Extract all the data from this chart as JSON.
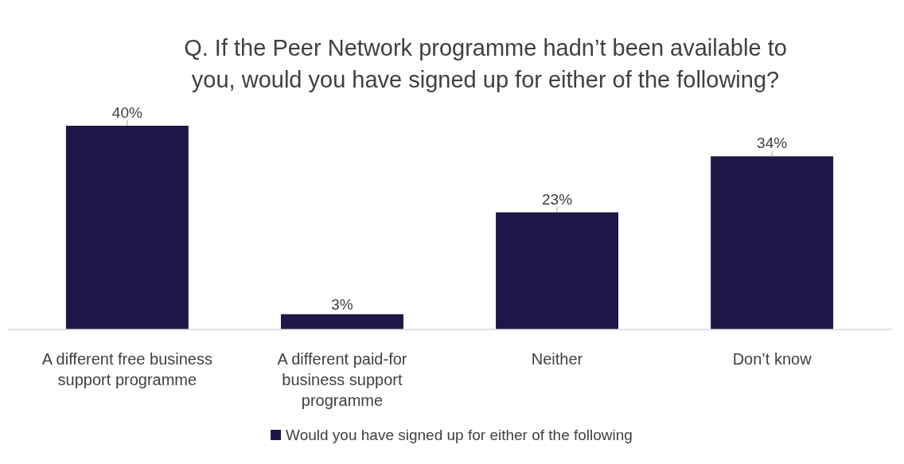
{
  "chart_data": {
    "type": "bar",
    "title": "Q. If the Peer Network programme hadn’t been available to you, would you have signed up for either of the following?",
    "categories": [
      "A different free business support programme",
      "A different paid-for business support programme",
      "Neither",
      "Don’t know"
    ],
    "series": [
      {
        "name": "Would you have signed up for either of the following",
        "color": "#201547",
        "values": [
          40,
          3,
          23,
          34
        ],
        "value_labels": [
          "40%",
          "3%",
          "23%",
          "34%"
        ]
      }
    ],
    "legend": "bottom",
    "grid": false
  }
}
